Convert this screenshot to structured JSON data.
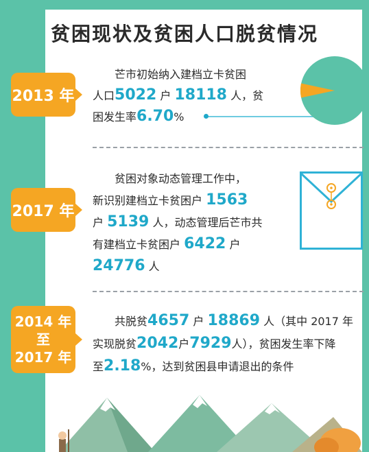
{
  "title": "贫困现状及贫困人口脱贫情况",
  "colors": {
    "frame": "#5bc2a8",
    "accent": "#f5a623",
    "number": "#1fa8c9"
  },
  "sections": [
    {
      "year": "2013 年",
      "text": {
        "line1": "芒市初始纳入建档立卡贫困",
        "l2a": "人口",
        "n1": "5022",
        "l2b": "户",
        "n2": "18118",
        "l2c": "人，贫",
        "l3a": "困发生率",
        "n3": "6.70",
        "l3b": "%"
      },
      "pie": {
        "poverty_rate_percent": 6.7
      }
    },
    {
      "year": "2017 年",
      "text": {
        "line1": "贫困对象动态管理工作中，",
        "l2a": "新识别建档立卡贫困户",
        "n1": "1563",
        "l3a": "户",
        "n2": "5139",
        "l3b": "人，动态管理后芒市共",
        "l4a": "有建档立卡贫困户",
        "n3": "6422",
        "l4b": "户",
        "n4": "24776",
        "l5b": "人"
      }
    },
    {
      "year_line1": "2014 年",
      "year_line2": "至",
      "year_line3": "2017 年",
      "text": {
        "l1a": "共脱贫",
        "n1": "4657",
        "l1b": "户",
        "n2": "18869",
        "l1c": "人（其中 2017 年",
        "l2a": "实现脱贫",
        "n3": "2042",
        "l2b": "户",
        "n4": "7929",
        "l2c": "人），贫困发生率下降",
        "l3a": "至",
        "n5": "2.18",
        "l3b": "%，达到贫困县申请退出的条件"
      }
    }
  ]
}
